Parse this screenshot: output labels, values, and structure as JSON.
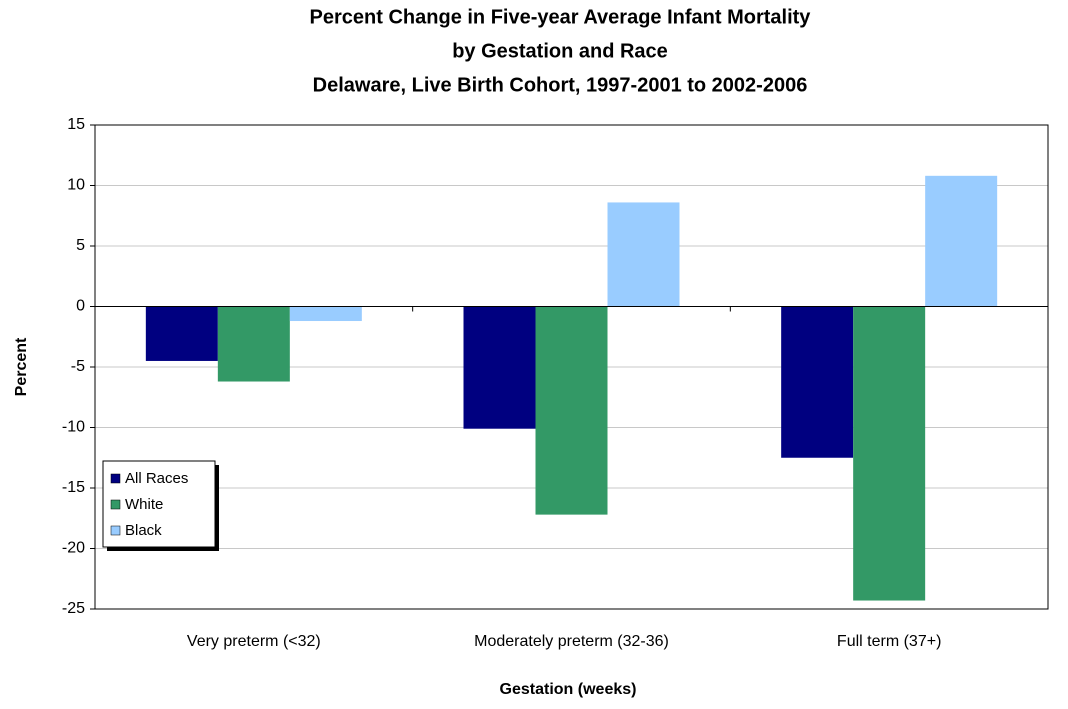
{
  "chart_data": {
    "type": "bar",
    "title_lines": [
      "Percent Change in Five-year Average Infant Mortality",
      "by Gestation and Race",
      "Delaware, Live Birth Cohort, 1997-2001 to 2002-2006"
    ],
    "x_label": "Gestation (weeks)",
    "y_label": "Percent",
    "categories": [
      "Very preterm (<32)",
      "Moderately preterm (32-36)",
      "Full term (37+)"
    ],
    "series": [
      {
        "name": "All Races",
        "color": "#000080",
        "values": [
          -4.5,
          -10.1,
          -12.5
        ]
      },
      {
        "name": "White",
        "color": "#339966",
        "values": [
          -6.2,
          -17.2,
          -24.3
        ]
      },
      {
        "name": "Black",
        "color": "#99ccff",
        "values": [
          -1.2,
          8.6,
          10.8
        ]
      }
    ],
    "ylim": [
      -25,
      15
    ],
    "yticks": [
      -25,
      -20,
      -15,
      -10,
      -5,
      0,
      5,
      10,
      15
    ],
    "grid": true,
    "legend": "lower left"
  }
}
